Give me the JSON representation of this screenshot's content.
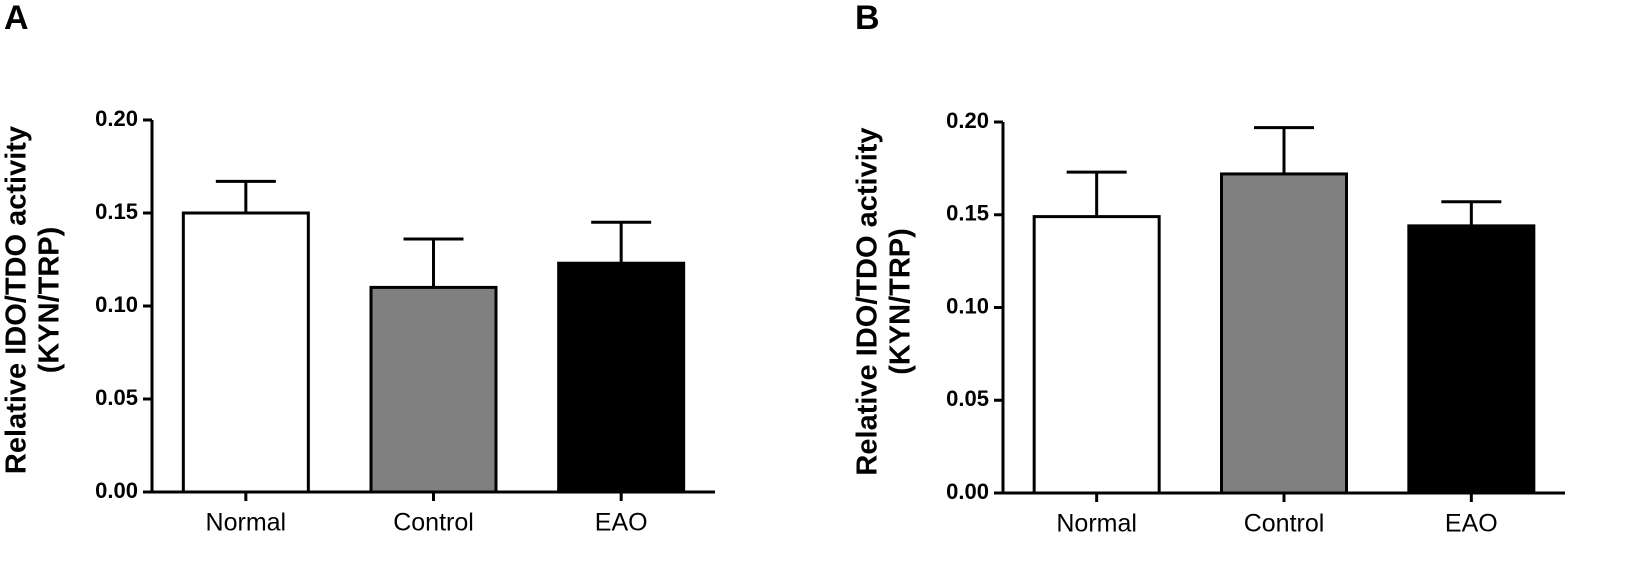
{
  "chart_data": [
    {
      "type": "bar",
      "label": "A",
      "ylabel": [
        "Relative IDO/TDO activity",
        "(KYN/TRP)"
      ],
      "categories": [
        "Normal",
        "Control",
        "EAO"
      ],
      "values": [
        0.15,
        0.11,
        0.123
      ],
      "errors": [
        0.017,
        0.026,
        0.022
      ],
      "colors": [
        "#ffffff",
        "#808080",
        "#000000"
      ],
      "ylim": [
        0,
        0.2
      ],
      "yticks": [
        {
          "value": 0,
          "label": "0.00"
        },
        {
          "value": 0.05,
          "label": "0.05"
        },
        {
          "value": 0.1,
          "label": "0.10"
        },
        {
          "value": 0.15,
          "label": "0.15"
        },
        {
          "value": 0.2,
          "label": "0.20"
        }
      ]
    },
    {
      "type": "bar",
      "label": "B",
      "ylabel": [
        "Relative IDO/TDO activity",
        "(KYN/TRP)"
      ],
      "categories": [
        "Normal",
        "Control",
        "EAO"
      ],
      "values": [
        0.149,
        0.172,
        0.144
      ],
      "errors": [
        0.024,
        0.025,
        0.013
      ],
      "colors": [
        "#ffffff",
        "#808080",
        "#000000"
      ],
      "ylim": [
        0,
        0.2
      ],
      "yticks": [
        {
          "value": 0,
          "label": "0.00"
        },
        {
          "value": 0.05,
          "label": "0.05"
        },
        {
          "value": 0.1,
          "label": "0.10"
        },
        {
          "value": 0.15,
          "label": "0.15"
        },
        {
          "value": 0.2,
          "label": "0.20"
        }
      ]
    }
  ]
}
